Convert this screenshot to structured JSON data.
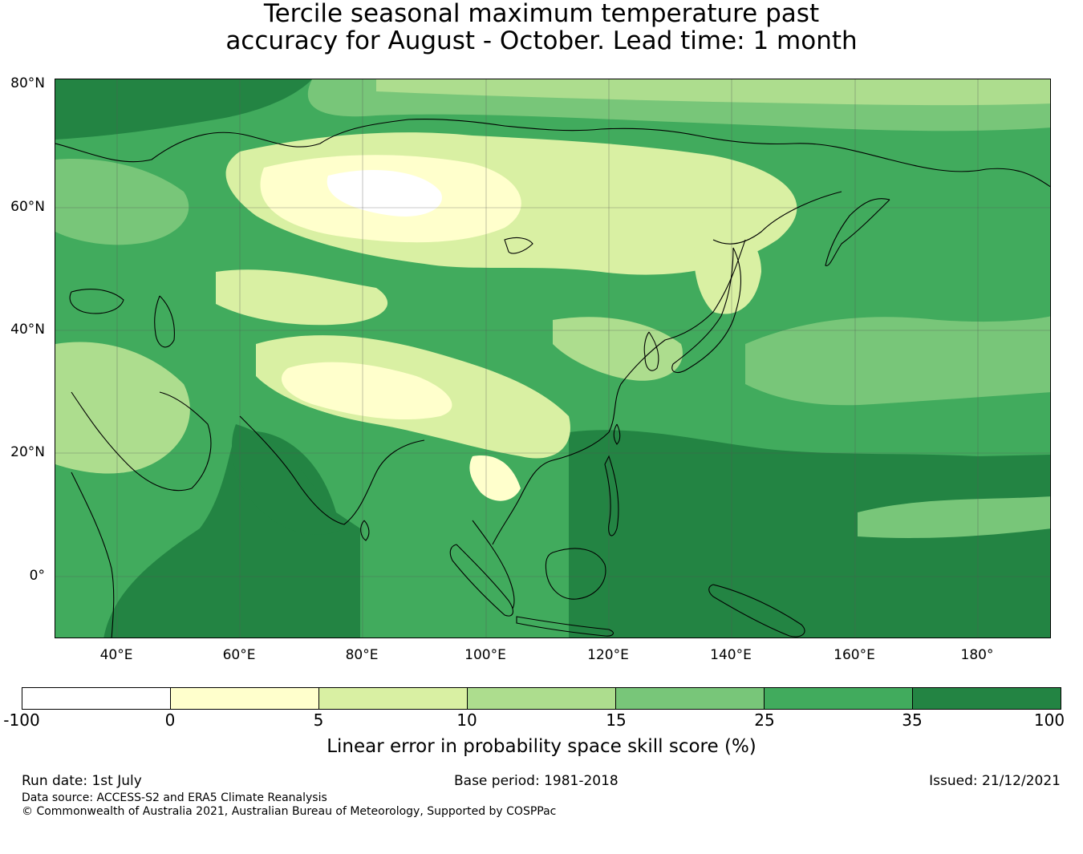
{
  "title": {
    "line1": "Tercile seasonal maximum temperature past",
    "line2": "accuracy for August - October. Lead time: 1 month"
  },
  "map": {
    "lat_labels": [
      "80°N",
      "60°N",
      "40°N",
      "20°N",
      "0°"
    ],
    "lon_labels": [
      "40°E",
      "60°E",
      "80°E",
      "100°E",
      "120°E",
      "140°E",
      "160°E",
      "180°"
    ],
    "region": "Asia and Western Pacific",
    "background_color": "#41ab5d",
    "coastline_color": "#000000"
  },
  "colorbar": {
    "ticks": [
      "-100",
      "0",
      "5",
      "10",
      "15",
      "25",
      "35",
      "100"
    ],
    "colors": [
      "#ffffff",
      "#ffffcc",
      "#d9f0a3",
      "#addd8e",
      "#78c679",
      "#41ab5d",
      "#238443"
    ],
    "label": "Linear error in probability space skill score (%)"
  },
  "footer": {
    "run_date": "Run date: 1st July",
    "base_period": "Base period: 1981-2018",
    "issued": "Issued: 21/12/2021",
    "data_source": "Data source: ACCESS-S2 and ERA5 Climate Reanalysis",
    "copyright": "© Commonwealth of Australia 2021, Australian Bureau of Meteorology, Supported by COSPPac"
  }
}
